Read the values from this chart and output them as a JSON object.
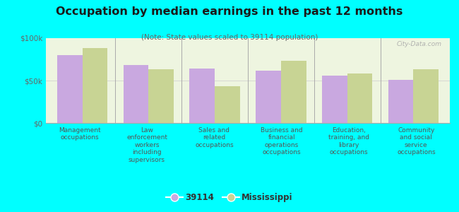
{
  "title": "Occupation by median earnings in the past 12 months",
  "subtitle": "(Note: State values scaled to 39114 population)",
  "background_outer": "#00FFFF",
  "background_inner": "#eef5e0",
  "bar_color_39114": "#c9a8e0",
  "bar_color_ms": "#c8d494",
  "categories": [
    "Management\noccupations",
    "Law\nenforcement\nworkers\nincluding\nsupervisors",
    "Sales and\nrelated\noccupations",
    "Business and\nfinancial\noperations\noccupations",
    "Education,\ntraining, and\nlibrary\noccupations",
    "Community\nand social\nservice\noccupations"
  ],
  "values_39114": [
    80000,
    68000,
    64000,
    62000,
    56000,
    51000
  ],
  "values_ms": [
    88000,
    63000,
    43000,
    73000,
    58000,
    63000
  ],
  "ylim": [
    0,
    100000
  ],
  "yticks": [
    0,
    50000,
    100000
  ],
  "ytick_labels": [
    "$0",
    "$50k",
    "$100k"
  ],
  "legend_label_39114": "39114",
  "legend_label_ms": "Mississippi",
  "watermark": "City-Data.com",
  "label_colors": [
    "#555555",
    "#555555",
    "#555555",
    "#555555",
    "#555555",
    "#555555"
  ]
}
